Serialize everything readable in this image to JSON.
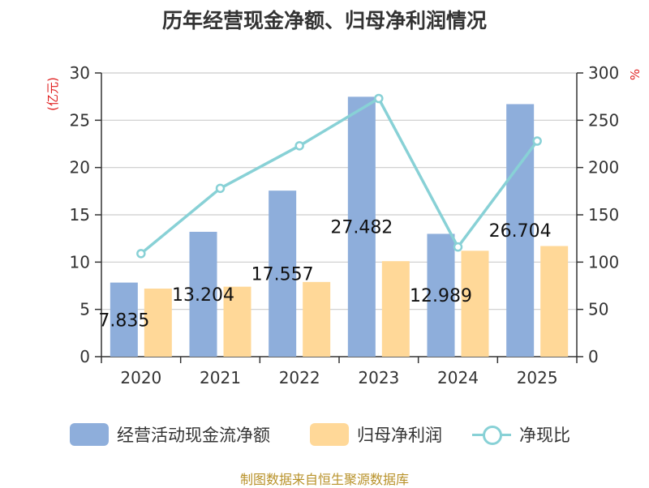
{
  "colors": {
    "bar1": "#8eaedb",
    "bar2": "#ffd898",
    "line": "#88d1d6",
    "axis": "#333333",
    "grid": "#cccccc",
    "unit": "#e02020"
  },
  "chart_data": {
    "type": "bar",
    "title": "历年经营现金净额、归母净利润情况",
    "categories": [
      "2020",
      "2021",
      "2022",
      "2023",
      "2024",
      "2025"
    ],
    "series": [
      {
        "name": "经营活动现金流净额",
        "axis": "left",
        "values": [
          7.835,
          13.204,
          17.557,
          27.482,
          12.989,
          26.704
        ]
      },
      {
        "name": "归母净利润",
        "axis": "left",
        "values": [
          7.2,
          7.4,
          7.9,
          10.1,
          11.2,
          11.7
        ]
      },
      {
        "name": "净现比",
        "axis": "right",
        "type": "line",
        "values": [
          109,
          178,
          223,
          273,
          116,
          228
        ]
      }
    ],
    "data_labels": [
      "7.835",
      "13.204",
      "17.557",
      "27.482",
      "12.989",
      "26.704"
    ],
    "y_left": {
      "label": "(亿元)",
      "ylim": [
        0,
        30
      ],
      "ticks": [
        "0",
        "5",
        "10",
        "15",
        "20",
        "25",
        "30"
      ]
    },
    "y_right": {
      "label": "%",
      "ylim": [
        0,
        300
      ],
      "ticks": [
        "0",
        "50",
        "100",
        "150",
        "200",
        "250",
        "300"
      ]
    },
    "legend": [
      "经营活动现金流净额",
      "归母净利润",
      "净现比"
    ],
    "legend_position": "bottom",
    "grid": true,
    "source": "制图数据来自恒生聚源数据库"
  }
}
